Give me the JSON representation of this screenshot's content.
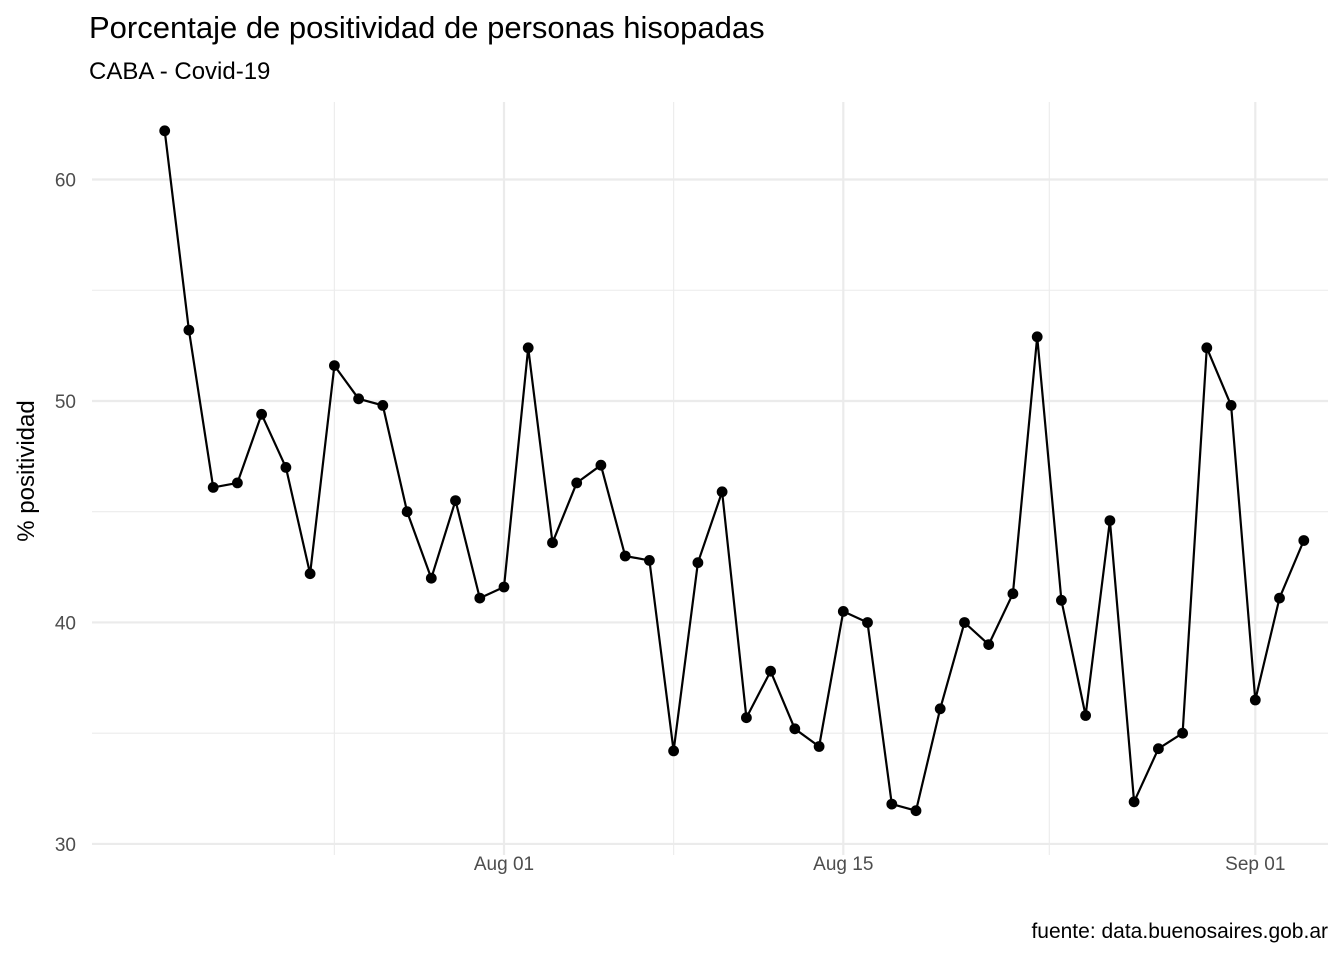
{
  "chart_data": {
    "type": "line",
    "title": "Porcentaje de positividad de personas hisopadas",
    "subtitle": "CABA - Covid-19",
    "caption": "fuente: data.buenosaires.gob.ar",
    "xlabel": "",
    "ylabel": "% positividad",
    "x_start": "2020-07-18",
    "x_ticks": [
      {
        "label": "Aug 01",
        "date": "2020-08-01"
      },
      {
        "label": "Aug 15",
        "date": "2020-08-15"
      },
      {
        "label": "Sep 01",
        "date": "2020-09-01"
      }
    ],
    "y_ticks": [
      30,
      40,
      50,
      60
    ],
    "xlim": [
      "2020-07-15",
      "2020-09-04"
    ],
    "ylim": [
      29.5,
      63.5
    ],
    "grid": true,
    "series": [
      {
        "color": "#000000",
        "values": [
          62.2,
          53.2,
          46.1,
          46.3,
          49.4,
          47.0,
          42.2,
          51.6,
          50.1,
          49.8,
          45.0,
          42.0,
          45.5,
          41.1,
          41.6,
          52.4,
          43.6,
          46.3,
          47.1,
          43.0,
          42.8,
          34.2,
          42.7,
          45.9,
          35.7,
          37.8,
          35.2,
          34.4,
          40.5,
          40.0,
          31.8,
          31.5,
          36.1,
          40.0,
          39.0,
          41.3,
          52.9,
          41.0,
          35.8,
          44.6,
          31.9,
          34.3,
          35.0,
          52.4,
          49.8,
          36.5,
          41.1,
          43.7
        ]
      }
    ]
  }
}
